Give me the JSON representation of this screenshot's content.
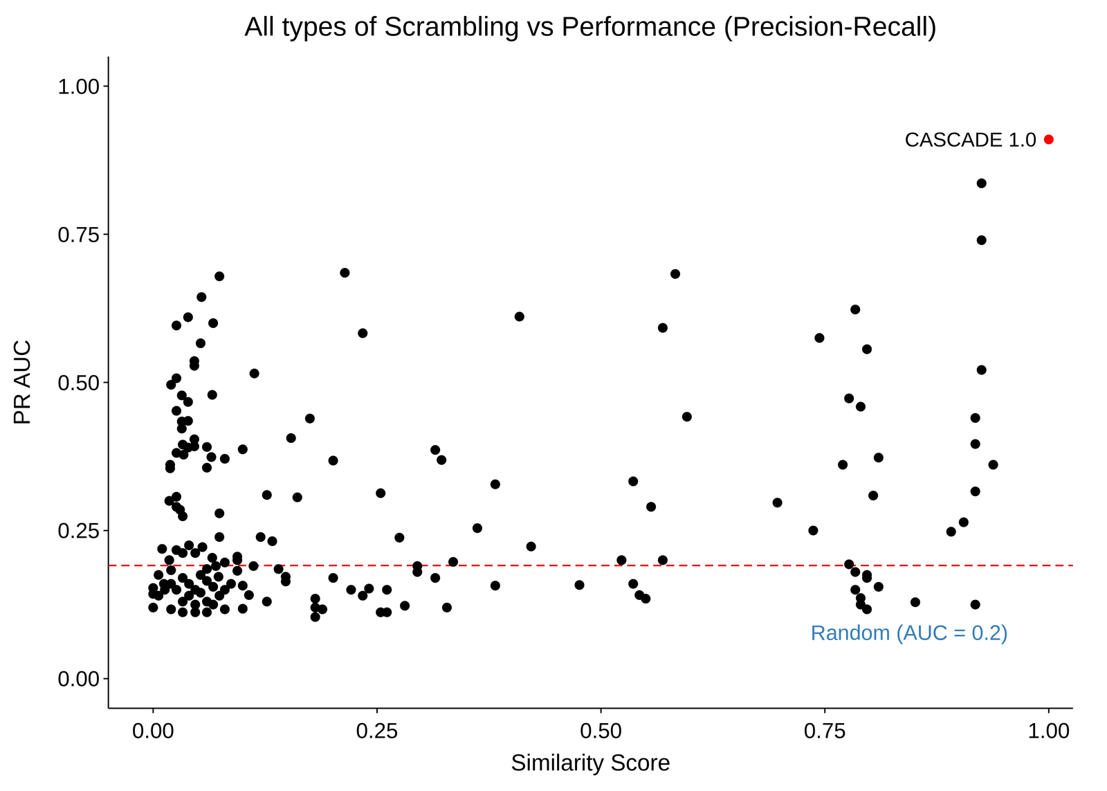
{
  "chart_data": {
    "type": "scatter",
    "title": "All types of Scrambling vs Performance (Precision-Recall)",
    "x_label": "Similarity Score",
    "y_label": "PR AUC",
    "color": "#000000",
    "marker": "circle",
    "x": [
      0.026,
      0.039,
      0.054,
      0.074,
      0.067,
      0.053,
      0.046,
      0.046,
      0.026,
      0.02,
      0.066,
      0.032,
      0.039,
      0.026,
      0.032,
      0.039,
      0.032,
      0.046,
      0.033,
      0.039,
      0.046,
      0.06,
      0.026,
      0.034,
      0.065,
      0.08,
      0.019,
      0.019,
      0.06,
      0.018,
      0.026,
      0.026,
      0.03,
      0.033,
      0.074,
      0.074,
      0.01,
      0.026,
      0.04,
      0.047,
      0.055,
      0.033,
      0.066,
      0.08,
      0.094,
      0.094,
      0.018,
      0.02,
      0.006,
      0.012,
      0.0,
      0.0,
      0.006,
      0.0,
      0.02,
      0.033,
      0.047,
      0.06,
      0.08,
      0.1,
      0.033,
      0.04,
      0.047,
      0.053,
      0.06,
      0.067,
      0.073,
      0.087,
      0.094,
      0.1,
      0.107,
      0.074,
      0.06,
      0.04,
      0.026,
      0.053,
      0.067,
      0.08,
      0.033,
      0.047,
      0.02,
      0.013,
      0.06,
      0.07,
      0.1,
      0.113,
      0.127,
      0.12,
      0.133,
      0.112,
      0.127,
      0.14,
      0.148,
      0.148,
      0.154,
      0.161,
      0.175,
      0.181,
      0.181,
      0.181,
      0.189,
      0.201,
      0.201,
      0.214,
      0.221,
      0.234,
      0.234,
      0.241,
      0.254,
      0.254,
      0.261,
      0.261,
      0.275,
      0.281,
      0.295,
      0.295,
      0.315,
      0.315,
      0.322,
      0.328,
      0.335,
      0.362,
      0.382,
      0.382,
      0.409,
      0.422,
      0.476,
      0.523,
      0.536,
      0.536,
      0.543,
      0.55,
      0.556,
      0.569,
      0.569,
      0.583,
      0.596,
      0.697,
      0.737,
      0.744,
      0.77,
      0.777,
      0.777,
      0.784,
      0.784,
      0.784,
      0.79,
      0.79,
      0.79,
      0.797,
      0.797,
      0.797,
      0.797,
      0.804,
      0.81,
      0.81,
      0.851,
      0.891,
      0.905,
      0.918,
      0.918,
      0.918,
      0.918,
      0.925,
      0.925,
      0.925,
      0.938
    ],
    "values": [
      0.596,
      0.61,
      0.644,
      0.679,
      0.6,
      0.566,
      0.536,
      0.528,
      0.507,
      0.496,
      0.479,
      0.478,
      0.467,
      0.452,
      0.434,
      0.435,
      0.422,
      0.404,
      0.395,
      0.39,
      0.392,
      0.391,
      0.381,
      0.378,
      0.374,
      0.371,
      0.361,
      0.355,
      0.356,
      0.3,
      0.307,
      0.29,
      0.285,
      0.274,
      0.279,
      0.239,
      0.219,
      0.217,
      0.225,
      0.212,
      0.222,
      0.212,
      0.204,
      0.196,
      0.206,
      0.2,
      0.2,
      0.183,
      0.175,
      0.16,
      0.153,
      0.143,
      0.14,
      0.12,
      0.117,
      0.112,
      0.112,
      0.112,
      0.117,
      0.118,
      0.17,
      0.16,
      0.15,
      0.175,
      0.165,
      0.155,
      0.172,
      0.16,
      0.182,
      0.157,
      0.141,
      0.14,
      0.13,
      0.14,
      0.15,
      0.145,
      0.125,
      0.15,
      0.13,
      0.125,
      0.16,
      0.15,
      0.185,
      0.19,
      0.387,
      0.515,
      0.31,
      0.239,
      0.232,
      0.19,
      0.13,
      0.185,
      0.172,
      0.164,
      0.406,
      0.306,
      0.439,
      0.135,
      0.12,
      0.104,
      0.117,
      0.368,
      0.17,
      0.685,
      0.15,
      0.583,
      0.14,
      0.152,
      0.313,
      0.112,
      0.112,
      0.15,
      0.238,
      0.123,
      0.19,
      0.18,
      0.386,
      0.17,
      0.369,
      0.12,
      0.197,
      0.254,
      0.328,
      0.157,
      0.611,
      0.223,
      0.158,
      0.2,
      0.333,
      0.16,
      0.141,
      0.135,
      0.29,
      0.592,
      0.2,
      0.683,
      0.442,
      0.297,
      0.25,
      0.575,
      0.361,
      0.473,
      0.193,
      0.623,
      0.18,
      0.15,
      0.459,
      0.136,
      0.125,
      0.556,
      0.175,
      0.17,
      0.117,
      0.309,
      0.373,
      0.155,
      0.129,
      0.248,
      0.264,
      0.44,
      0.396,
      0.316,
      0.125,
      0.836,
      0.74,
      0.521,
      0.361
    ],
    "annotations": [
      {
        "text": "CASCADE 1.0",
        "x": 1.0,
        "y": 0.91,
        "color": "#ff0000"
      }
    ],
    "reference_lines": [
      {
        "y": 0.191,
        "label": "Random (AUC = 0.2)",
        "color": "#e41a1c",
        "label_color": "#377eb8",
        "line_style": "dashed"
      }
    ],
    "xlim": [
      -0.05,
      1.027
    ],
    "ylim": [
      -0.05,
      1.05
    ],
    "xticks": [
      {
        "value": 0,
        "label": "0.00"
      },
      {
        "value": 0.25,
        "label": "0.25"
      },
      {
        "value": 0.5,
        "label": "0.50"
      },
      {
        "value": 0.75,
        "label": "0.75"
      },
      {
        "value": 1,
        "label": "1.00"
      }
    ],
    "yticks": [
      {
        "value": 0,
        "label": "0.00"
      },
      {
        "value": 0.25,
        "label": "0.25"
      },
      {
        "value": 0.5,
        "label": "0.50"
      },
      {
        "value": 0.75,
        "label": "0.75"
      },
      {
        "value": 1,
        "label": "1.00"
      }
    ],
    "grid": false
  }
}
